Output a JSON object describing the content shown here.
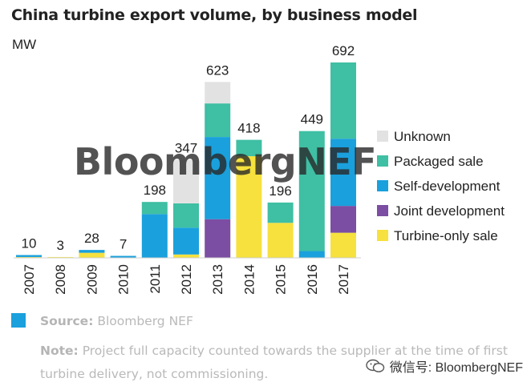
{
  "title": "China turbine export volume, by business model",
  "unit": "MW",
  "watermark": "BloombergNEF",
  "footer": {
    "source_label": "Source:",
    "source_text": "Bloomberg NEF",
    "note_label": "Note:",
    "note_text": "Project full capacity counted towards the supplier at the time of first turbine delivery, not commissioning."
  },
  "wechat": "微信号: BloombergNEF",
  "colors": {
    "unknown": "#e3e2e3",
    "packaged": "#3fbfa3",
    "self": "#1aa0dc",
    "joint": "#7b4ea3",
    "turbine": "#f6e13e",
    "accent_swatch": "#1aa0dc"
  },
  "chart_data": {
    "type": "bar",
    "stacked": true,
    "title": "China turbine export volume, by business model",
    "ylabel": "MW",
    "xlabel": "",
    "ylim": [
      0,
      720
    ],
    "grid": false,
    "legend_position": "right",
    "categories": [
      "2007",
      "2008",
      "2009",
      "2010",
      "2011",
      "2012",
      "2013",
      "2014",
      "2015",
      "2016",
      "2017"
    ],
    "totals": [
      10,
      3,
      28,
      7,
      198,
      347,
      623,
      418,
      196,
      449,
      692
    ],
    "series": [
      {
        "name": "Turbine-only sale",
        "color_key": "turbine",
        "values": [
          3,
          3,
          18,
          0,
          0,
          12,
          0,
          360,
          124,
          0,
          89
        ]
      },
      {
        "name": "Joint development",
        "color_key": "joint",
        "values": [
          0,
          0,
          0,
          0,
          0,
          0,
          137,
          0,
          0,
          0,
          95
        ]
      },
      {
        "name": "Self-development",
        "color_key": "self",
        "values": [
          7,
          0,
          10,
          7,
          155,
          95,
          291,
          0,
          0,
          24,
          238
        ]
      },
      {
        "name": "Packaged sale",
        "color_key": "packaged",
        "values": [
          0,
          0,
          0,
          0,
          43,
          86,
          119,
          58,
          72,
          425,
          270
        ]
      },
      {
        "name": "Unknown",
        "color_key": "unknown",
        "values": [
          0,
          0,
          0,
          0,
          0,
          154,
          76,
          0,
          0,
          0,
          0
        ]
      }
    ],
    "legend_order": [
      "Unknown",
      "Packaged sale",
      "Self-development",
      "Joint development",
      "Turbine-only sale"
    ]
  }
}
